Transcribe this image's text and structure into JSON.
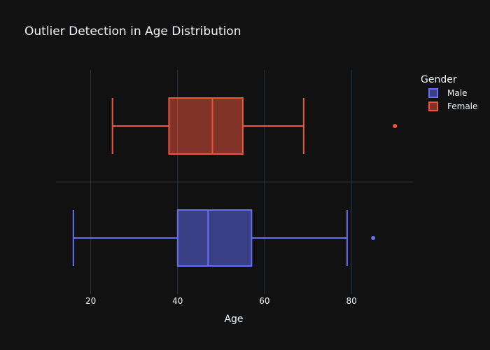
{
  "chart_data": {
    "type": "box",
    "orientation": "horizontal",
    "title": "Outlier Detection in Age Distribution",
    "xlabel": "Age",
    "ylabel": "",
    "xlim": [
      12,
      94
    ],
    "xticks": [
      20,
      40,
      60,
      80
    ],
    "grid": true,
    "legend": {
      "title": "Gender",
      "placement": "top-right",
      "entries": [
        "Male",
        "Female"
      ]
    },
    "series": [
      {
        "name": "Male",
        "color": "#636efa",
        "whisker_low": 16,
        "q1": 40,
        "median": 47,
        "q3": 57,
        "whisker_high": 79,
        "outliers": [
          85
        ]
      },
      {
        "name": "Female",
        "color": "#ef553b",
        "whisker_low": 25,
        "q1": 38,
        "median": 48,
        "q3": 55,
        "whisker_high": 69,
        "outliers": [
          90
        ]
      }
    ]
  }
}
